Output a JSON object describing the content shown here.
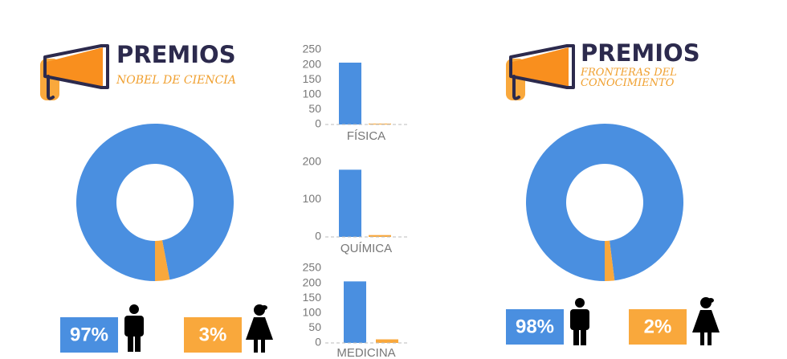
{
  "chart_data": [
    {
      "type": "pie",
      "title": "PREMIOS",
      "subtitle": "NOBEL DE CIENCIA",
      "values": [
        97,
        3
      ],
      "value_labels": [
        "97%",
        "3%"
      ],
      "colors": [
        "#4a8fe0",
        "#f9a83c"
      ]
    },
    {
      "type": "bar",
      "xlabel": "FÍSICA",
      "values": [
        207,
        3
      ],
      "colors": [
        "#4a8fe0",
        "#f9a83c"
      ],
      "ylim": [
        0,
        250
      ],
      "yticks": [
        0,
        50,
        100,
        150,
        200,
        250
      ]
    },
    {
      "type": "bar",
      "xlabel": "QUÍMICA",
      "values": [
        180,
        5
      ],
      "colors": [
        "#4a8fe0",
        "#f9a83c"
      ],
      "ylim": [
        0,
        200
      ],
      "yticks": [
        0,
        100,
        200
      ]
    },
    {
      "type": "bar",
      "xlabel": "MEDICINA",
      "values": [
        206,
        12
      ],
      "colors": [
        "#4a8fe0",
        "#f9a83c"
      ],
      "ylim": [
        0,
        250
      ],
      "yticks": [
        0,
        50,
        100,
        150,
        200,
        250
      ]
    },
    {
      "type": "pie",
      "title": "PREMIOS",
      "subtitle": "FRONTERAS DEL CONOCIMIENTO",
      "values": [
        98,
        2
      ],
      "value_labels": [
        "98%",
        "2%"
      ],
      "colors": [
        "#4a8fe0",
        "#f9a83c"
      ]
    }
  ]
}
